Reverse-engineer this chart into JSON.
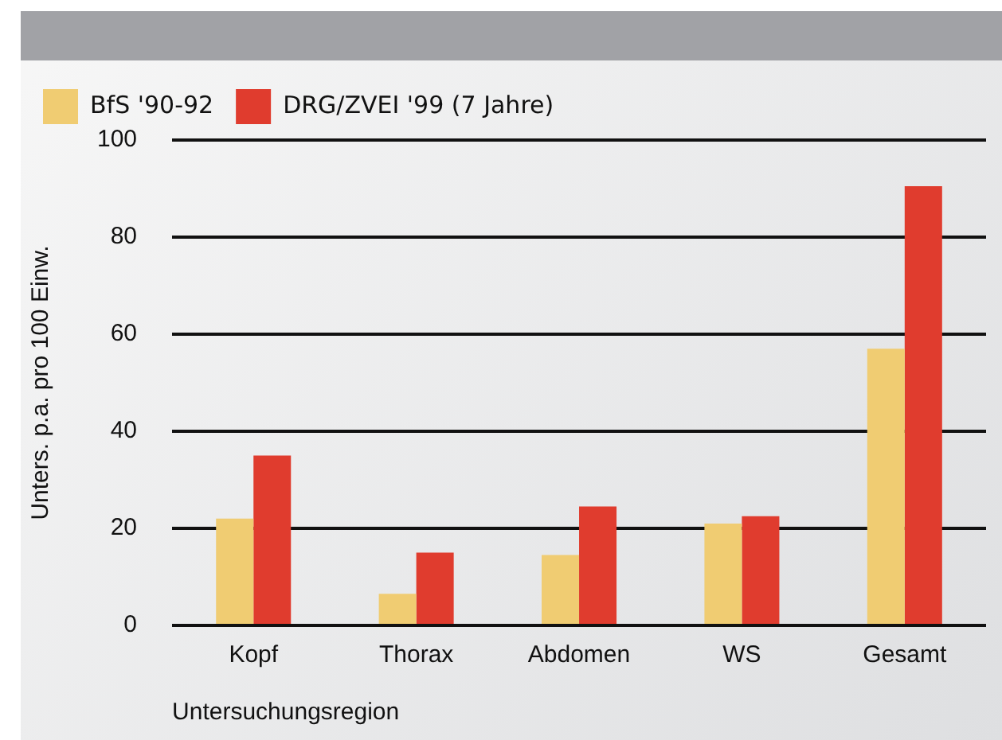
{
  "chart_data": {
    "type": "bar",
    "xlabel": "Untersuchungsregion",
    "ylabel": "Unters. p.a. pro 100 Einw.",
    "categories": [
      "Kopf",
      "Thorax",
      "Abdomen",
      "WS",
      "Gesamt"
    ],
    "series": [
      {
        "name": "BfS '90-92",
        "color": "#f0cc72",
        "values": [
          22,
          6.5,
          14.5,
          21,
          57
        ]
      },
      {
        "name": "DRG/ZVEI '99 (7 Jahre)",
        "color": "#e03c2e",
        "values": [
          35,
          15,
          24.5,
          22.5,
          90.5
        ]
      }
    ],
    "ylim": [
      0,
      100
    ],
    "yticks": [
      0,
      20,
      40,
      60,
      80,
      100
    ],
    "grid": "y",
    "legend": "top left"
  }
}
